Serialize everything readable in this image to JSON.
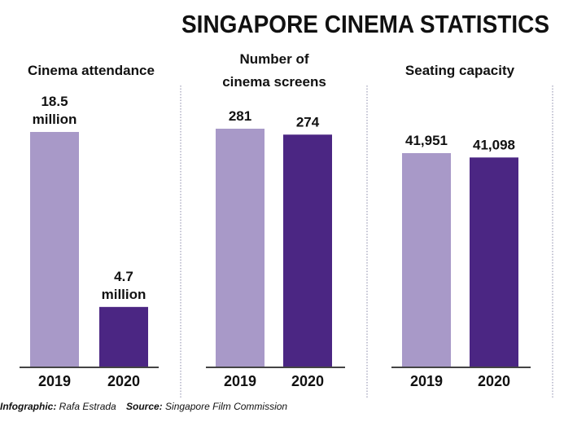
{
  "title": "SINGAPORE CINEMA STATISTICS",
  "colors": {
    "y2019": "#a899c8",
    "y2020": "#4b2683",
    "text": "#111111",
    "axis": "#444444",
    "divider": "#8a8aa8"
  },
  "chart_data": [
    {
      "type": "bar",
      "title": [
        "Cinema attendance"
      ],
      "categories": [
        "2019",
        "2020"
      ],
      "values": [
        18.5,
        4.7
      ],
      "data_labels": [
        [
          "18.5",
          "million"
        ],
        [
          "4.7",
          "million"
        ]
      ],
      "unit": "million"
    },
    {
      "type": "bar",
      "title": [
        "Number of",
        "cinema screens"
      ],
      "categories": [
        "2019",
        "2020"
      ],
      "values": [
        281,
        274
      ],
      "data_labels": [
        [
          "281"
        ],
        [
          "274"
        ]
      ]
    },
    {
      "type": "bar",
      "title": [
        "Seating capacity"
      ],
      "categories": [
        "2019",
        "2020"
      ],
      "values": [
        41951,
        41098
      ],
      "data_labels": [
        [
          "41,951"
        ],
        [
          "41,098"
        ]
      ]
    }
  ],
  "footer": {
    "credit_label": "Infographic:",
    "credit_value": "Rafa Estrada",
    "source_label": "Source:",
    "source_value": "Singapore Film Commission"
  }
}
